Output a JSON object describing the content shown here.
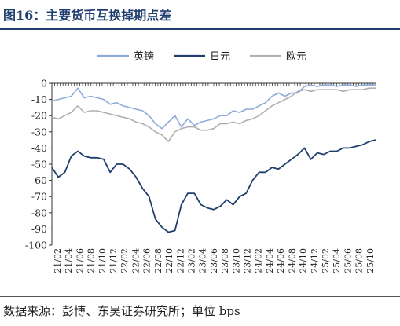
{
  "title": "图16：主要货币互换掉期点差",
  "source": "数据来源：彭博、东吴证券研究所；单位 bps",
  "chart_data": {
    "type": "line",
    "title": "",
    "xlabel": "",
    "ylabel": "",
    "ylim": [
      -100,
      0
    ],
    "yticks": [
      "0",
      "-10",
      "-20",
      "-30",
      "-40",
      "-50",
      "-60",
      "-70",
      "-80",
      "-90",
      "-100"
    ],
    "x_tick_labels": [
      "21/02",
      "21/04",
      "21/06",
      "21/08",
      "21/10",
      "21/12",
      "22/02",
      "22/04",
      "22/06",
      "22/08",
      "22/10",
      "22/12",
      "23/02",
      "23/04",
      "23/06",
      "23/08",
      "23/10",
      "23/12",
      "24/02",
      "24/04",
      "24/06",
      "24/08",
      "24/10",
      "24/12",
      "25/02",
      "25/04",
      "25/06",
      "25/08",
      "25/10"
    ],
    "x_range": [
      "2021-01",
      "2025-11"
    ],
    "legend_position": "top",
    "colors": {
      "gbp": "#8eaadb",
      "jpy": "#1f3e6e",
      "eur": "#b0b0b0"
    },
    "series": [
      {
        "name": "英镑",
        "key": "gbp",
        "points": [
          [
            0,
            -11
          ],
          [
            1,
            -10
          ],
          [
            2,
            -9
          ],
          [
            3,
            -8
          ],
          [
            4,
            -3
          ],
          [
            5,
            -9
          ],
          [
            6,
            -8
          ],
          [
            7,
            -9
          ],
          [
            8,
            -10
          ],
          [
            9,
            -13
          ],
          [
            10,
            -12
          ],
          [
            11,
            -14
          ],
          [
            12,
            -15
          ],
          [
            13,
            -16
          ],
          [
            14,
            -17
          ],
          [
            15,
            -20
          ],
          [
            16,
            -25
          ],
          [
            17,
            -28
          ],
          [
            18,
            -24
          ],
          [
            19,
            -20
          ],
          [
            20,
            -27
          ],
          [
            21,
            -22
          ],
          [
            22,
            -26
          ],
          [
            23,
            -24
          ],
          [
            24,
            -23
          ],
          [
            25,
            -22
          ],
          [
            26,
            -20
          ],
          [
            27,
            -20
          ],
          [
            28,
            -17
          ],
          [
            29,
            -18
          ],
          [
            30,
            -16
          ],
          [
            31,
            -16
          ],
          [
            32,
            -14
          ],
          [
            33,
            -12
          ],
          [
            34,
            -8
          ],
          [
            35,
            -6
          ],
          [
            36,
            -8
          ],
          [
            37,
            -6
          ],
          [
            38,
            -6
          ],
          [
            39,
            -2
          ],
          [
            40,
            -1
          ],
          [
            41,
            -2
          ],
          [
            42,
            -1
          ],
          [
            43,
            -1
          ],
          [
            44,
            -2
          ],
          [
            45,
            -1
          ],
          [
            46,
            -1
          ],
          [
            47,
            -2
          ],
          [
            48,
            -1
          ],
          [
            49,
            -1
          ],
          [
            50,
            -1
          ]
        ]
      },
      {
        "name": "日元",
        "key": "jpy",
        "points": [
          [
            0,
            -52
          ],
          [
            1,
            -58
          ],
          [
            2,
            -55
          ],
          [
            3,
            -45
          ],
          [
            4,
            -42
          ],
          [
            5,
            -45
          ],
          [
            6,
            -46
          ],
          [
            7,
            -46
          ],
          [
            8,
            -47
          ],
          [
            9,
            -55
          ],
          [
            10,
            -50
          ],
          [
            11,
            -50
          ],
          [
            12,
            -53
          ],
          [
            13,
            -58
          ],
          [
            14,
            -65
          ],
          [
            15,
            -70
          ],
          [
            16,
            -84
          ],
          [
            17,
            -89
          ],
          [
            18,
            -92
          ],
          [
            19,
            -91
          ],
          [
            20,
            -75
          ],
          [
            21,
            -68
          ],
          [
            22,
            -68
          ],
          [
            23,
            -75
          ],
          [
            24,
            -77
          ],
          [
            25,
            -78
          ],
          [
            26,
            -76
          ],
          [
            27,
            -72
          ],
          [
            28,
            -75
          ],
          [
            29,
            -70
          ],
          [
            30,
            -68
          ],
          [
            31,
            -60
          ],
          [
            32,
            -55
          ],
          [
            33,
            -55
          ],
          [
            34,
            -52
          ],
          [
            35,
            -53
          ],
          [
            36,
            -50
          ],
          [
            37,
            -47
          ],
          [
            38,
            -44
          ],
          [
            39,
            -40
          ],
          [
            40,
            -47
          ],
          [
            41,
            -43
          ],
          [
            42,
            -44
          ],
          [
            43,
            -42
          ],
          [
            44,
            -42
          ],
          [
            45,
            -40
          ],
          [
            46,
            -40
          ],
          [
            47,
            -39
          ],
          [
            48,
            -38
          ],
          [
            49,
            -36
          ],
          [
            50,
            -35
          ]
        ]
      },
      {
        "name": "欧元",
        "key": "eur",
        "points": [
          [
            0,
            -21
          ],
          [
            1,
            -22
          ],
          [
            2,
            -20
          ],
          [
            3,
            -18
          ],
          [
            4,
            -14
          ],
          [
            5,
            -18
          ],
          [
            6,
            -17
          ],
          [
            7,
            -17
          ],
          [
            8,
            -18
          ],
          [
            9,
            -19
          ],
          [
            10,
            -20
          ],
          [
            11,
            -21
          ],
          [
            12,
            -22
          ],
          [
            13,
            -24
          ],
          [
            14,
            -25
          ],
          [
            15,
            -27
          ],
          [
            16,
            -30
          ],
          [
            17,
            -32
          ],
          [
            18,
            -36
          ],
          [
            19,
            -30
          ],
          [
            20,
            -28
          ],
          [
            21,
            -27
          ],
          [
            22,
            -27
          ],
          [
            23,
            -29
          ],
          [
            24,
            -29
          ],
          [
            25,
            -28
          ],
          [
            26,
            -25
          ],
          [
            27,
            -25
          ],
          [
            28,
            -24
          ],
          [
            29,
            -25
          ],
          [
            30,
            -23
          ],
          [
            31,
            -22
          ],
          [
            32,
            -20
          ],
          [
            33,
            -17
          ],
          [
            34,
            -14
          ],
          [
            35,
            -12
          ],
          [
            36,
            -10
          ],
          [
            37,
            -8
          ],
          [
            38,
            -5
          ],
          [
            39,
            -4
          ],
          [
            40,
            -5
          ],
          [
            41,
            -4
          ],
          [
            42,
            -4
          ],
          [
            43,
            -4
          ],
          [
            44,
            -4
          ],
          [
            45,
            -5
          ],
          [
            46,
            -4
          ],
          [
            47,
            -4
          ],
          [
            48,
            -4
          ],
          [
            49,
            -3
          ],
          [
            50,
            -3
          ]
        ]
      }
    ]
  }
}
